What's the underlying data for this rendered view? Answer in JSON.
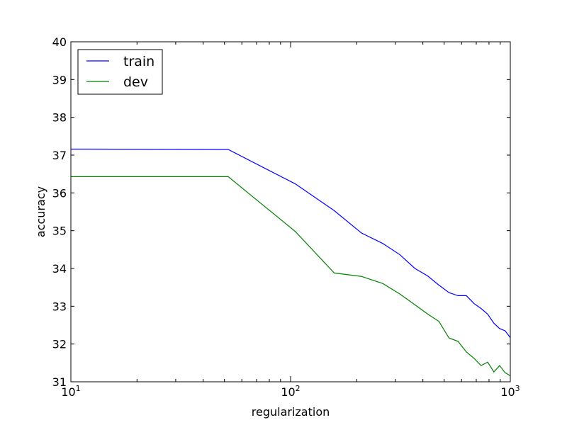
{
  "chart_data": {
    "type": "line",
    "xscale": "log",
    "xlim": [
      10,
      1000
    ],
    "ylim": [
      31,
      40
    ],
    "xlabel": "regularization",
    "ylabel": "accuracy",
    "grid": false,
    "legend_position": "top-left",
    "xticks": [
      {
        "value": 10,
        "base": "10",
        "exp": "1"
      },
      {
        "value": 100,
        "base": "10",
        "exp": "2"
      },
      {
        "value": 1000,
        "base": "10",
        "exp": "3"
      }
    ],
    "yticks": [
      "31",
      "32",
      "33",
      "34",
      "35",
      "36",
      "37",
      "38",
      "39",
      "40"
    ],
    "series": [
      {
        "name": "train",
        "color": "#0000ff",
        "points": [
          [
            10,
            37.16
          ],
          [
            52,
            37.15
          ],
          [
            105,
            36.24
          ],
          [
            158,
            35.53
          ],
          [
            210,
            34.94
          ],
          [
            263,
            34.66
          ],
          [
            315,
            34.36
          ],
          [
            368,
            34.0
          ],
          [
            421,
            33.8
          ],
          [
            473,
            33.56
          ],
          [
            526,
            33.36
          ],
          [
            578,
            33.28
          ],
          [
            631,
            33.28
          ],
          [
            684,
            33.07
          ],
          [
            736,
            32.94
          ],
          [
            789,
            32.79
          ],
          [
            842,
            32.55
          ],
          [
            894,
            32.41
          ],
          [
            947,
            32.35
          ],
          [
            1000,
            32.17
          ]
        ]
      },
      {
        "name": "dev",
        "color": "#008000",
        "points": [
          [
            10,
            36.43
          ],
          [
            52,
            36.43
          ],
          [
            105,
            34.98
          ],
          [
            158,
            33.88
          ],
          [
            210,
            33.79
          ],
          [
            263,
            33.6
          ],
          [
            315,
            33.32
          ],
          [
            368,
            33.04
          ],
          [
            421,
            32.79
          ],
          [
            473,
            32.6
          ],
          [
            526,
            32.16
          ],
          [
            578,
            32.07
          ],
          [
            631,
            31.79
          ],
          [
            684,
            31.62
          ],
          [
            736,
            31.43
          ],
          [
            789,
            31.52
          ],
          [
            842,
            31.26
          ],
          [
            894,
            31.43
          ],
          [
            947,
            31.24
          ],
          [
            1000,
            31.16
          ]
        ]
      }
    ]
  }
}
